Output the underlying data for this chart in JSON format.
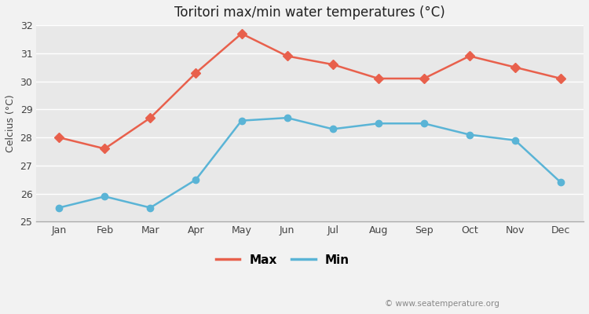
{
  "title": "Toritori max/min water temperatures (°C)",
  "ylabel": "Celcius (°C)",
  "months": [
    "Jan",
    "Feb",
    "Mar",
    "Apr",
    "May",
    "Jun",
    "Jul",
    "Aug",
    "Sep",
    "Oct",
    "Nov",
    "Dec"
  ],
  "max_temps": [
    28.0,
    27.6,
    28.7,
    30.3,
    31.7,
    30.9,
    30.6,
    30.1,
    30.1,
    30.9,
    30.5,
    30.1
  ],
  "min_temps": [
    25.5,
    25.9,
    25.5,
    26.5,
    28.6,
    28.7,
    28.3,
    28.5,
    28.5,
    28.1,
    27.9,
    26.4
  ],
  "max_color": "#e8604c",
  "min_color": "#5ab4d6",
  "bg_color": "#f2f2f2",
  "plot_bg_color": "#e8e8e8",
  "grid_color": "#ffffff",
  "ylim": [
    25,
    32
  ],
  "yticks": [
    25,
    26,
    27,
    28,
    29,
    30,
    31,
    32
  ],
  "watermark": "© www.seatemperature.org",
  "legend_max": "Max",
  "legend_min": "Min",
  "figsize": [
    7.5,
    4.0
  ],
  "dpi": 100
}
